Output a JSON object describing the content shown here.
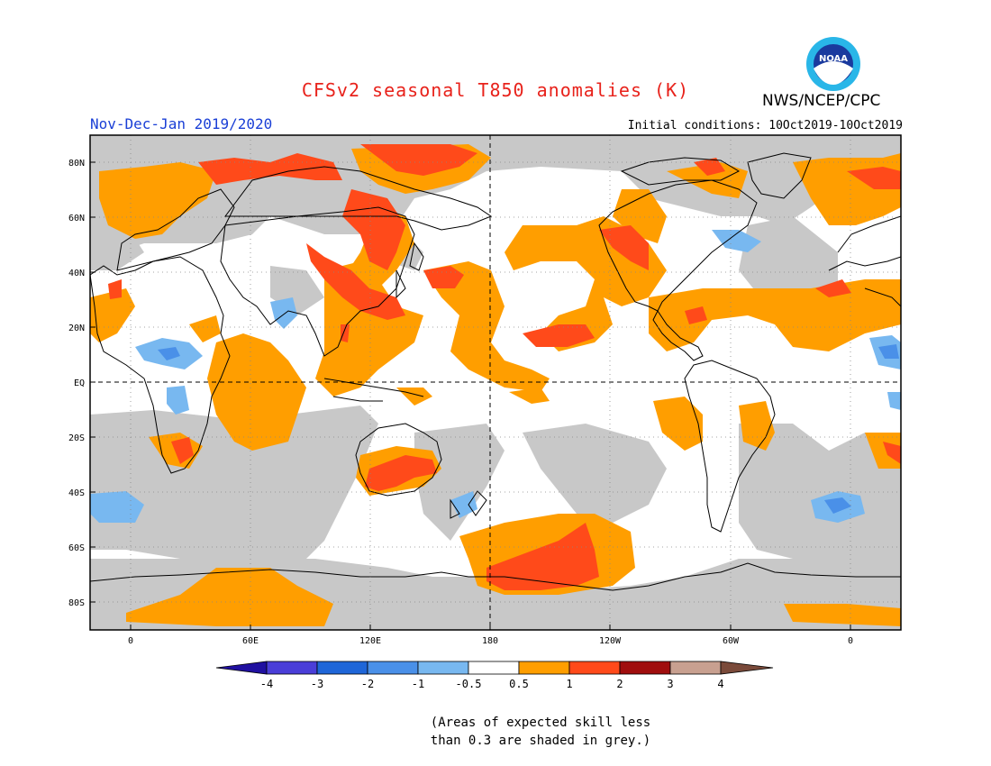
{
  "header": {
    "title": "CFSv2 seasonal T850 anomalies (K)",
    "season": "Nov-Dec-Jan 2019/2020",
    "initial_conditions": "Initial conditions: 10Oct2019-10Oct2019",
    "agency": "NWS/NCEP/CPC",
    "logo_text": "NOAA"
  },
  "colors": {
    "title": "#e8221b",
    "season": "#1a3fd6",
    "grey_low_skill": "#c8c8c8",
    "anom_0_5_to_1": "#ff9e00",
    "anom_1_to_2": "#ff4a1a",
    "anom_neg_0_5_to_neg_1": "#78b8f0",
    "anom_neg_1_to_neg_2": "#4a90e8"
  },
  "map": {
    "lat_labels": [
      "80N",
      "60N",
      "40N",
      "20N",
      "EQ",
      "20S",
      "40S",
      "60S",
      "80S"
    ],
    "lon_labels": [
      "0",
      "60E",
      "120E",
      "180",
      "120W",
      "60W",
      "0"
    ]
  },
  "colorbar": {
    "levels": [
      "-4",
      "-3",
      "-2",
      "-1",
      "-0.5",
      "0.5",
      "1",
      "2",
      "3",
      "4"
    ],
    "colors": [
      "#2010a0",
      "#4a3ed8",
      "#1f66d8",
      "#4a90e8",
      "#78b8f0",
      "#ffffff",
      "#ff9e00",
      "#ff4a1a",
      "#a00e0e",
      "#c8a090",
      "#7a4a3a"
    ]
  },
  "footnote": {
    "line1": "(Areas of expected skill less",
    "line2": "than 0.3 are shaded in grey.)"
  }
}
